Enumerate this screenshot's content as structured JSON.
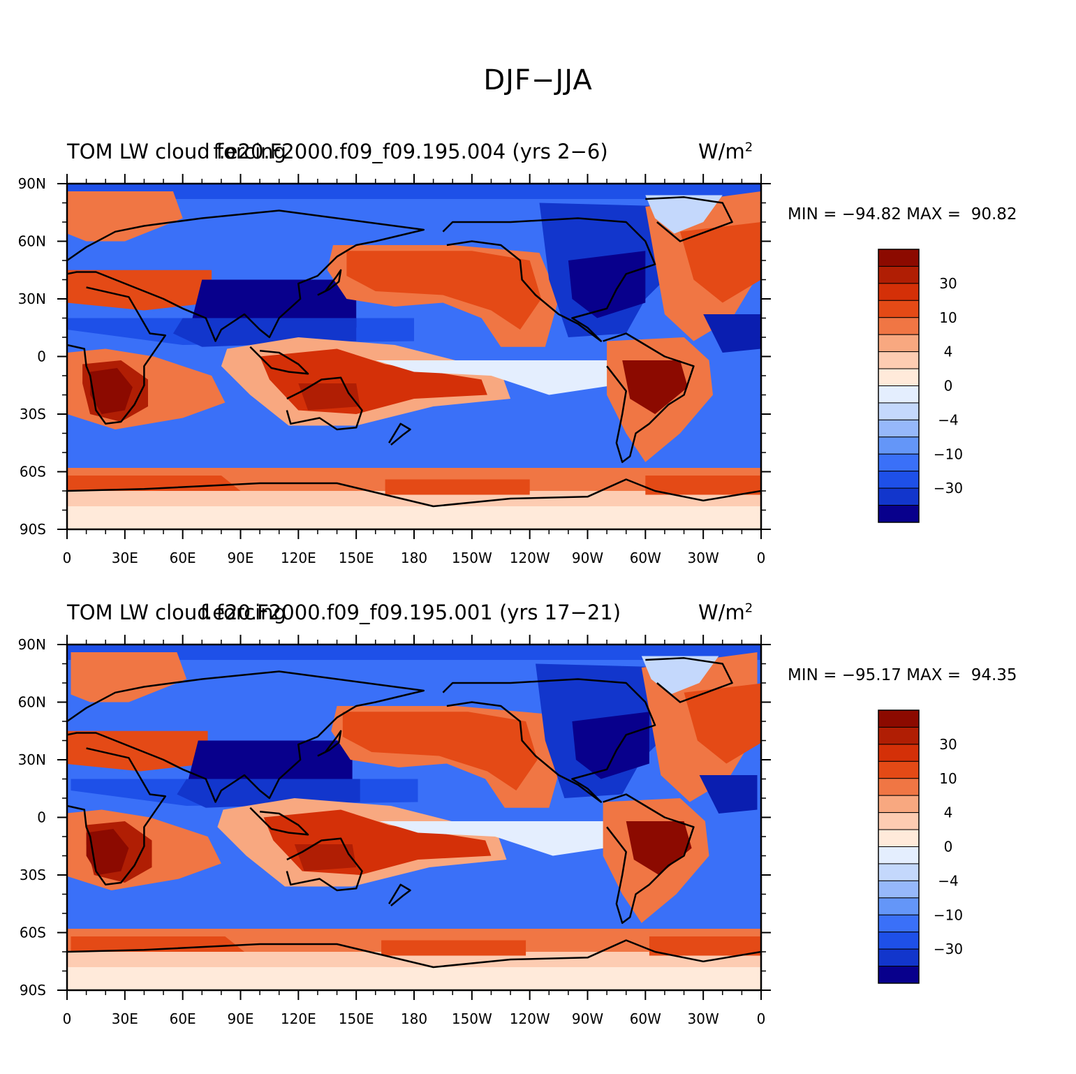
{
  "figure": {
    "title": "DJF−JJA"
  },
  "colors": {
    "contour_levels": [
      "#08008C",
      "#0A1EB0",
      "#1236CC",
      "#1E50E8",
      "#3A70F8",
      "#6496F8",
      "#96B8FA",
      "#C4D8FC",
      "#E4EEFE",
      "#FFEADA",
      "#FDCCB2",
      "#F8A880",
      "#F07644",
      "#E44A16",
      "#D43008",
      "#B01E04",
      "#8C0A00"
    ],
    "coast": "#000000"
  },
  "panels": [
    {
      "left_title": "TOM LW cloud forcing",
      "center_title": "f.e20.F2000.f09_f09.195.004 (yrs 2−6)",
      "units_base": "W/m",
      "units_exp": "2",
      "minmax": "MIN = −94.82 MAX =  90.82"
    },
    {
      "left_title": "TOM LW cloud forcing",
      "center_title": "f.e20.F2000.f09_f09.195.001 (yrs 17−21)",
      "units_base": "W/m",
      "units_exp": "2",
      "minmax": "MIN = −95.17 MAX =  94.35"
    }
  ],
  "axes": {
    "lat_labels": [
      "90N",
      "60N",
      "30N",
      "0",
      "30S",
      "60S",
      "90S"
    ],
    "lon_labels": [
      "0",
      "30E",
      "60E",
      "90E",
      "120E",
      "150E",
      "180",
      "150W",
      "120W",
      "90W",
      "60W",
      "30W",
      "0"
    ]
  },
  "colorbar": {
    "labels": [
      "30",
      "10",
      "4",
      "0",
      "−4",
      "−10",
      "−30"
    ]
  },
  "chart_data": {
    "type": "heatmap",
    "title": "DJF−JJA",
    "variable": "TOM LW cloud forcing",
    "units": "W/m^2",
    "x_axis": "longitude",
    "y_axis": "latitude",
    "lon_range": [
      0,
      360
    ],
    "lat_range": [
      -90,
      90
    ],
    "contour_labels": [
      "30",
      "10",
      "4",
      "0",
      "−4",
      "−10",
      "−30"
    ],
    "panels": [
      {
        "case": "f.e20.F2000.f09_f09.195.004",
        "years": "yrs 2−6",
        "min": -94.82,
        "max": 90.82
      },
      {
        "case": "f.e20.F2000.f09_f09.195.001",
        "years": "yrs 17−21",
        "min": -95.17,
        "max": 94.35
      }
    ]
  }
}
